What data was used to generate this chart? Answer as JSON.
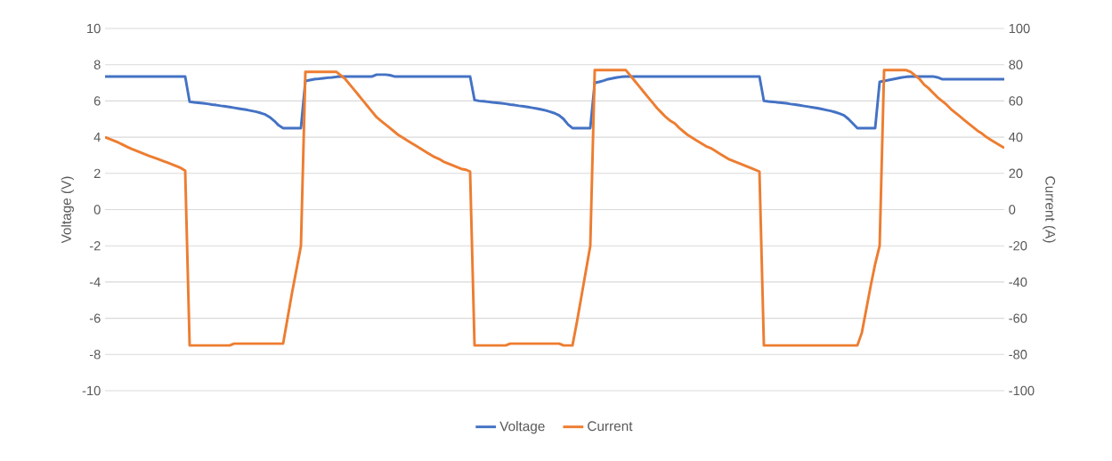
{
  "chart_data": {
    "type": "line",
    "categories": [
      null,
      null,
      null,
      null,
      null,
      null,
      null,
      null,
      null,
      null,
      null,
      null,
      null,
      null,
      null,
      null,
      null,
      null,
      null,
      null,
      null,
      null,
      null,
      null,
      null,
      null,
      null,
      null,
      null,
      null,
      null,
      null,
      null,
      null,
      null,
      null,
      null,
      null,
      null,
      null,
      null,
      null,
      null,
      null,
      null,
      null,
      null,
      null,
      null,
      null,
      null,
      null,
      null,
      null,
      null,
      null,
      null,
      null,
      null,
      null,
      null,
      null,
      null,
      null,
      null,
      null,
      null,
      null,
      null,
      null,
      null,
      null,
      null,
      null,
      null,
      null,
      null,
      null,
      null,
      null,
      null,
      null,
      null,
      null,
      null,
      null,
      null,
      null,
      null,
      null,
      null,
      null,
      null,
      null,
      null,
      null,
      null,
      null,
      null,
      null,
      null,
      null,
      null,
      null,
      null,
      null,
      null,
      null,
      null,
      null,
      null,
      null,
      null,
      null,
      null,
      null,
      null,
      null,
      null,
      null,
      null,
      null,
      null,
      null,
      null,
      null,
      null,
      null,
      null,
      null,
      null,
      null,
      null,
      null,
      null,
      null,
      null,
      null,
      null,
      null,
      null,
      null,
      null,
      null,
      null,
      null,
      null,
      null,
      null,
      null,
      null,
      null,
      null,
      null,
      null,
      null,
      null,
      null,
      null,
      null,
      null,
      null,
      null,
      null,
      null,
      null,
      null,
      null,
      null,
      null,
      null,
      null,
      null,
      null,
      null,
      null,
      null,
      null,
      null,
      null,
      null,
      null,
      null,
      null,
      null,
      null,
      null,
      null,
      null,
      null,
      null,
      null,
      null,
      null,
      null,
      null,
      null,
      null,
      null,
      null,
      null,
      null,
      null
    ],
    "series": [
      {
        "name": "Voltage",
        "color": "#4472c4",
        "values": [
          7.35,
          7.35,
          7.35,
          7.35,
          7.35,
          7.35,
          7.35,
          7.35,
          7.35,
          7.35,
          7.35,
          7.35,
          7.35,
          7.35,
          7.35,
          7.35,
          7.35,
          7.35,
          7.35,
          5.95,
          5.92,
          5.9,
          5.87,
          5.84,
          5.8,
          5.77,
          5.73,
          5.7,
          5.66,
          5.62,
          5.58,
          5.54,
          5.5,
          5.45,
          5.4,
          5.33,
          5.25,
          5.1,
          4.9,
          4.65,
          4.5,
          4.5,
          4.5,
          4.5,
          4.5,
          7.1,
          7.15,
          7.2,
          7.22,
          7.25,
          7.28,
          7.3,
          7.33,
          7.35,
          7.35,
          7.35,
          7.35,
          7.35,
          7.35,
          7.35,
          7.35,
          7.45,
          7.45,
          7.45,
          7.42,
          7.35,
          7.35,
          7.35,
          7.35,
          7.35,
          7.35,
          7.35,
          7.35,
          7.35,
          7.35,
          7.35,
          7.35,
          7.35,
          7.35,
          7.35,
          7.35,
          7.35,
          7.35,
          6.05,
          6.0,
          5.98,
          5.95,
          5.92,
          5.9,
          5.87,
          5.84,
          5.8,
          5.77,
          5.73,
          5.7,
          5.66,
          5.62,
          5.58,
          5.53,
          5.47,
          5.4,
          5.32,
          5.2,
          5.0,
          4.7,
          4.5,
          4.5,
          4.5,
          4.5,
          4.5,
          7.0,
          7.05,
          7.12,
          7.2,
          7.25,
          7.3,
          7.33,
          7.35,
          7.35,
          7.35,
          7.35,
          7.35,
          7.35,
          7.35,
          7.35,
          7.35,
          7.35,
          7.35,
          7.35,
          7.35,
          7.35,
          7.35,
          7.35,
          7.35,
          7.35,
          7.35,
          7.35,
          7.35,
          7.35,
          7.35,
          7.35,
          7.35,
          7.35,
          7.35,
          7.35,
          7.35,
          7.35,
          7.35,
          6.0,
          5.97,
          5.95,
          5.92,
          5.9,
          5.87,
          5.83,
          5.8,
          5.76,
          5.72,
          5.68,
          5.64,
          5.6,
          5.55,
          5.5,
          5.45,
          5.38,
          5.3,
          5.2,
          5.0,
          4.75,
          4.5,
          4.5,
          4.5,
          4.5,
          4.5,
          7.05,
          7.1,
          7.15,
          7.2,
          7.25,
          7.3,
          7.33,
          7.35,
          7.35,
          7.35,
          7.35,
          7.35,
          7.35,
          7.3,
          7.2,
          7.2,
          7.2,
          7.2,
          7.2,
          7.2,
          7.2,
          7.2,
          7.2,
          7.2,
          7.2,
          7.2,
          7.2,
          7.2,
          7.2
        ]
      },
      {
        "name": "Current",
        "color": "#ed7d31",
        "axis": "y2",
        "values": [
          40,
          39,
          38,
          37,
          35.8,
          34.6,
          33.5,
          32.5,
          31.5,
          30.5,
          29.6,
          28.7,
          27.8,
          26.9,
          26,
          25,
          24,
          23,
          21.5,
          -75,
          -75,
          -75,
          -75,
          -75,
          -75,
          -75,
          -75,
          -75,
          -75,
          -74,
          -74,
          -74,
          -74,
          -74,
          -74,
          -74,
          -74,
          -74,
          -74,
          -74,
          -74,
          -60,
          -46,
          -33,
          -20,
          76,
          76,
          76,
          76,
          76,
          76,
          76,
          76,
          74,
          72,
          69,
          66,
          63,
          60,
          57,
          54,
          51,
          49,
          47,
          45,
          43,
          41,
          39.5,
          38,
          36.5,
          35,
          33.5,
          32,
          30.5,
          29,
          28,
          26.5,
          25.5,
          24.5,
          23.5,
          22.5,
          22,
          21,
          -75,
          -75,
          -75,
          -75,
          -75,
          -75,
          -75,
          -75,
          -74,
          -74,
          -74,
          -74,
          -74,
          -74,
          -74,
          -74,
          -74,
          -74,
          -74,
          -74,
          -75,
          -75,
          -75,
          -62,
          -48,
          -34,
          -20,
          77,
          77,
          77,
          77,
          77,
          77,
          77,
          77,
          74,
          71,
          68,
          65,
          62,
          59,
          56,
          53.5,
          51,
          49,
          47.5,
          45,
          43,
          41,
          39.5,
          38,
          36.5,
          35,
          34,
          32.5,
          31,
          29.5,
          28,
          27,
          26,
          25,
          24,
          23,
          22,
          21,
          -75,
          -75,
          -75,
          -75,
          -75,
          -75,
          -75,
          -75,
          -75,
          -75,
          -75,
          -75,
          -75,
          -75,
          -75,
          -75,
          -75,
          -75,
          -75,
          -75,
          -75,
          -75,
          -68,
          -55,
          -42,
          -30,
          -20,
          77,
          77,
          77,
          77,
          77,
          77,
          76,
          74,
          72,
          69,
          67,
          64.5,
          62,
          60,
          58,
          55.5,
          53.5,
          51.5,
          49.5,
          47.5,
          45.5,
          43.5,
          42,
          40,
          38.5,
          37,
          35.5,
          34
        ]
      }
    ],
    "ylabel": "Voltage (V)",
    "y2label": "Current (A)",
    "ylim": [
      -10,
      10
    ],
    "yticks": [
      -10,
      -8,
      -6,
      -4,
      -2,
      0,
      2,
      4,
      6,
      8,
      10
    ],
    "y2lim": [
      -100,
      100
    ],
    "y2ticks": [
      -100,
      -80,
      -60,
      -40,
      -20,
      0,
      20,
      40,
      60,
      80,
      100
    ],
    "grid": "y",
    "legend": "bottom",
    "marker": "none",
    "line_style": "solid"
  }
}
